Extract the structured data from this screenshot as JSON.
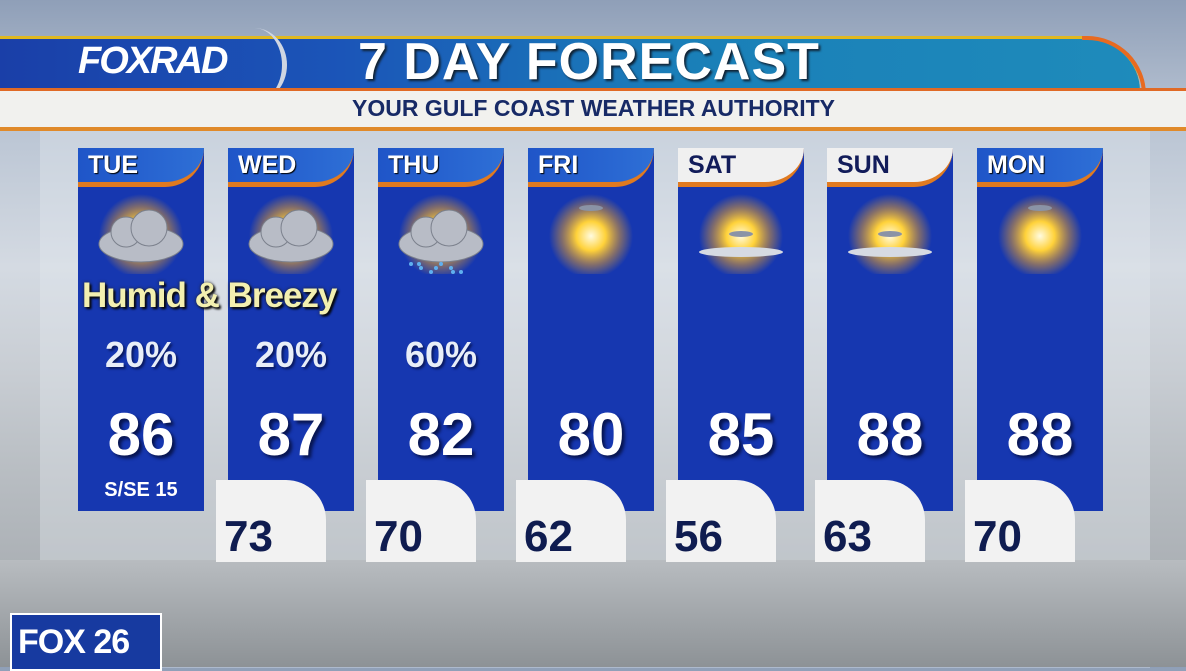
{
  "header": {
    "logo": "FOXRAD",
    "title": "7 DAY FORECAST",
    "subtitle": "YOUR GULF COAST WEATHER AUTHORITY"
  },
  "note": "Humid & Breezy",
  "days": [
    {
      "day": "TUE",
      "icon": "partly-cloudy-icon",
      "pop": "20%",
      "high": "86",
      "low": "",
      "wind": "S/SE 15",
      "header_style": "blue"
    },
    {
      "day": "WED",
      "icon": "partly-cloudy-icon",
      "pop": "20%",
      "high": "87",
      "low": "73",
      "header_style": "blue"
    },
    {
      "day": "THU",
      "icon": "rain-cloud-icon",
      "pop": "60%",
      "high": "82",
      "low": "70",
      "header_style": "blue"
    },
    {
      "day": "FRI",
      "icon": "sunny-icon",
      "pop": "",
      "high": "80",
      "low": "62",
      "header_style": "blue"
    },
    {
      "day": "SAT",
      "icon": "mostly-sunny-icon",
      "pop": "",
      "high": "85",
      "low": "56",
      "header_style": "white"
    },
    {
      "day": "SUN",
      "icon": "mostly-sunny-icon",
      "pop": "",
      "high": "88",
      "low": "63",
      "header_style": "white"
    },
    {
      "day": "MON",
      "icon": "sunny-icon",
      "pop": "",
      "high": "88",
      "low": "70",
      "header_style": "blue"
    }
  ],
  "bug": "FOX 26",
  "colors": {
    "panel": "#1637b0",
    "accent": "#e07a20",
    "navy": "#121c5a"
  }
}
